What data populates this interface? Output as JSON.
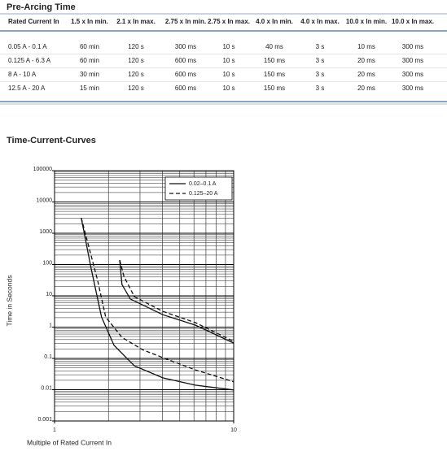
{
  "header": {
    "title": "Pre-Arcing Time"
  },
  "table": {
    "columns": [
      "Rated Current In",
      "1.5 x In min.",
      "2.1 x In max.",
      "2.75 x In min.",
      "2.75 x In max.",
      "4.0 x In min.",
      "4.0 x In max.",
      "10.0 x In min.",
      "10.0 x In max."
    ],
    "rows": [
      [
        "0.05 A - 0.1 A",
        "60 min",
        "120 s",
        "300 ms",
        "10 s",
        "40 ms",
        "3 s",
        "10 ms",
        "300 ms"
      ],
      [
        "0.125 A - 6.3 A",
        "60 min",
        "120 s",
        "600 ms",
        "10 s",
        "150 ms",
        "3 s",
        "20 ms",
        "300 ms"
      ],
      [
        "8 A - 10 A",
        "30 min",
        "120 s",
        "600 ms",
        "10 s",
        "150 ms",
        "3 s",
        "20 ms",
        "300 ms"
      ],
      [
        "12.5 A - 20 A",
        "15 min",
        "120 s",
        "600 ms",
        "10 s",
        "150 ms",
        "3 s",
        "20 ms",
        "300 ms"
      ]
    ]
  },
  "chart_data": {
    "type": "line",
    "title": "Time-Current-Curves",
    "x_label": "Multiple of Rated Current In",
    "y_label": "Time in Seconds",
    "log_x": true,
    "log_y": true,
    "grid": true,
    "legend": "top-right",
    "xlim": [
      1,
      10
    ],
    "ylim": [
      0.001,
      100000
    ],
    "xticks": [
      1,
      10
    ],
    "yticks": [
      0.001,
      0.01,
      0.1,
      1,
      10,
      100,
      1000,
      10000,
      100000
    ],
    "series": [
      {
        "name": "0.02–0.1 A",
        "color": "#111111",
        "dashed": false,
        "lines": [
          {
            "x": [
              1.41,
              1.6,
              1.83,
              2.15,
              2.79,
              4.02,
              6.1,
              10
            ],
            "values": [
              3100,
              76,
              2.1,
              0.26,
              0.058,
              0.024,
              0.014,
              0.0098
            ]
          },
          {
            "x": [
              2.31,
              2.38,
              2.65,
              4.02,
              6.1,
              10
            ],
            "values": [
              138,
              23,
              7.9,
              2.5,
              1.16,
              0.31
            ]
          }
        ]
      },
      {
        "name": "0.125–20 A",
        "color": "#111111",
        "dashed": true,
        "lines": [
          {
            "x": [
              1.41,
              1.74,
              1.93,
              2.38,
              3.1,
              4.02,
              6.1,
              10
            ],
            "values": [
              3100,
              31,
              2.1,
              0.47,
              0.19,
              0.106,
              0.043,
              0.018
            ]
          },
          {
            "x": [
              2.31,
              2.44,
              2.79,
              4.02,
              6.1,
              10
            ],
            "values": [
              138,
              42,
              9.4,
              3.2,
              1.4,
              0.35
            ]
          }
        ]
      }
    ]
  }
}
